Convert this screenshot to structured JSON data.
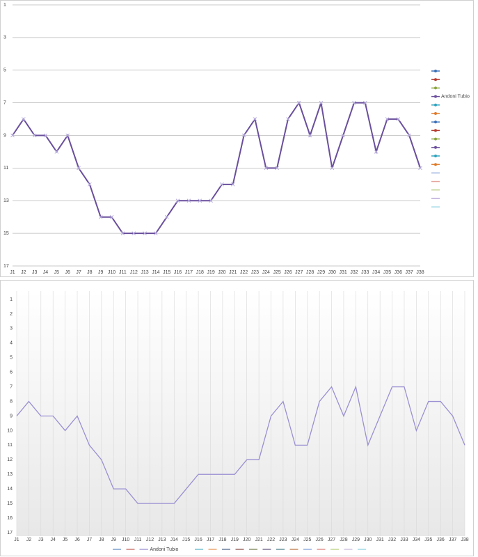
{
  "chart_data": [
    {
      "type": "line",
      "categories": [
        "J1",
        "J2",
        "J3",
        "J4",
        "J5",
        "J6",
        "J7",
        "J8",
        "J9",
        "J10",
        "J11",
        "J12",
        "J13",
        "J14",
        "J15",
        "J16",
        "J17",
        "J18",
        "J19",
        "J20",
        "J21",
        "J22",
        "J23",
        "J24",
        "J25",
        "J26",
        "J27",
        "J28",
        "J29",
        "J30",
        "J31",
        "J32",
        "J33",
        "J34",
        "J35",
        "J36",
        "J37",
        "J38"
      ],
      "series": [
        {
          "name": "Andoni Tubio",
          "color": "#6a4f9c",
          "values": [
            9,
            8,
            9,
            9,
            10,
            9,
            11,
            12,
            14,
            14,
            15,
            15,
            15,
            15,
            14,
            13,
            13,
            13,
            13,
            12,
            12,
            9,
            8,
            11,
            11,
            8,
            7,
            9,
            7,
            11,
            9,
            7,
            7,
            10,
            8,
            8,
            9,
            11
          ]
        }
      ],
      "ylim": [
        17,
        1
      ],
      "yticks": [
        1,
        3,
        5,
        7,
        9,
        11,
        13,
        15,
        17
      ],
      "grid": true,
      "markers": true,
      "legend": "right"
    },
    {
      "type": "line",
      "categories": [
        "J1",
        "J2",
        "J3",
        "J4",
        "J5",
        "J6",
        "J7",
        "J8",
        "J9",
        "J10",
        "J11",
        "J12",
        "J13",
        "J14",
        "J15",
        "J16",
        "J17",
        "J18",
        "J19",
        "J20",
        "J21",
        "J22",
        "J23",
        "J24",
        "J25",
        "J26",
        "J27",
        "J28",
        "J29",
        "J30",
        "J31",
        "J32",
        "J33",
        "J34",
        "J35",
        "J36",
        "J37",
        "J38"
      ],
      "series": [
        {
          "name": "Andoni Tubio",
          "color": "#9a8fd2",
          "values": [
            9,
            8,
            9,
            9,
            10,
            9,
            11,
            12,
            14,
            14,
            15,
            15,
            15,
            15,
            14,
            13,
            13,
            13,
            13,
            12,
            12,
            9,
            8,
            11,
            11,
            8,
            7,
            9,
            7,
            11,
            9,
            7,
            7,
            10,
            8,
            8,
            9,
            11
          ]
        }
      ],
      "ylim": [
        17,
        1
      ],
      "yticks": [
        1,
        2,
        3,
        4,
        5,
        6,
        7,
        8,
        9,
        10,
        11,
        12,
        13,
        14,
        15,
        16,
        17
      ],
      "grid": false,
      "vertical_grid": true,
      "markers": false,
      "legend": "bottom"
    }
  ]
}
